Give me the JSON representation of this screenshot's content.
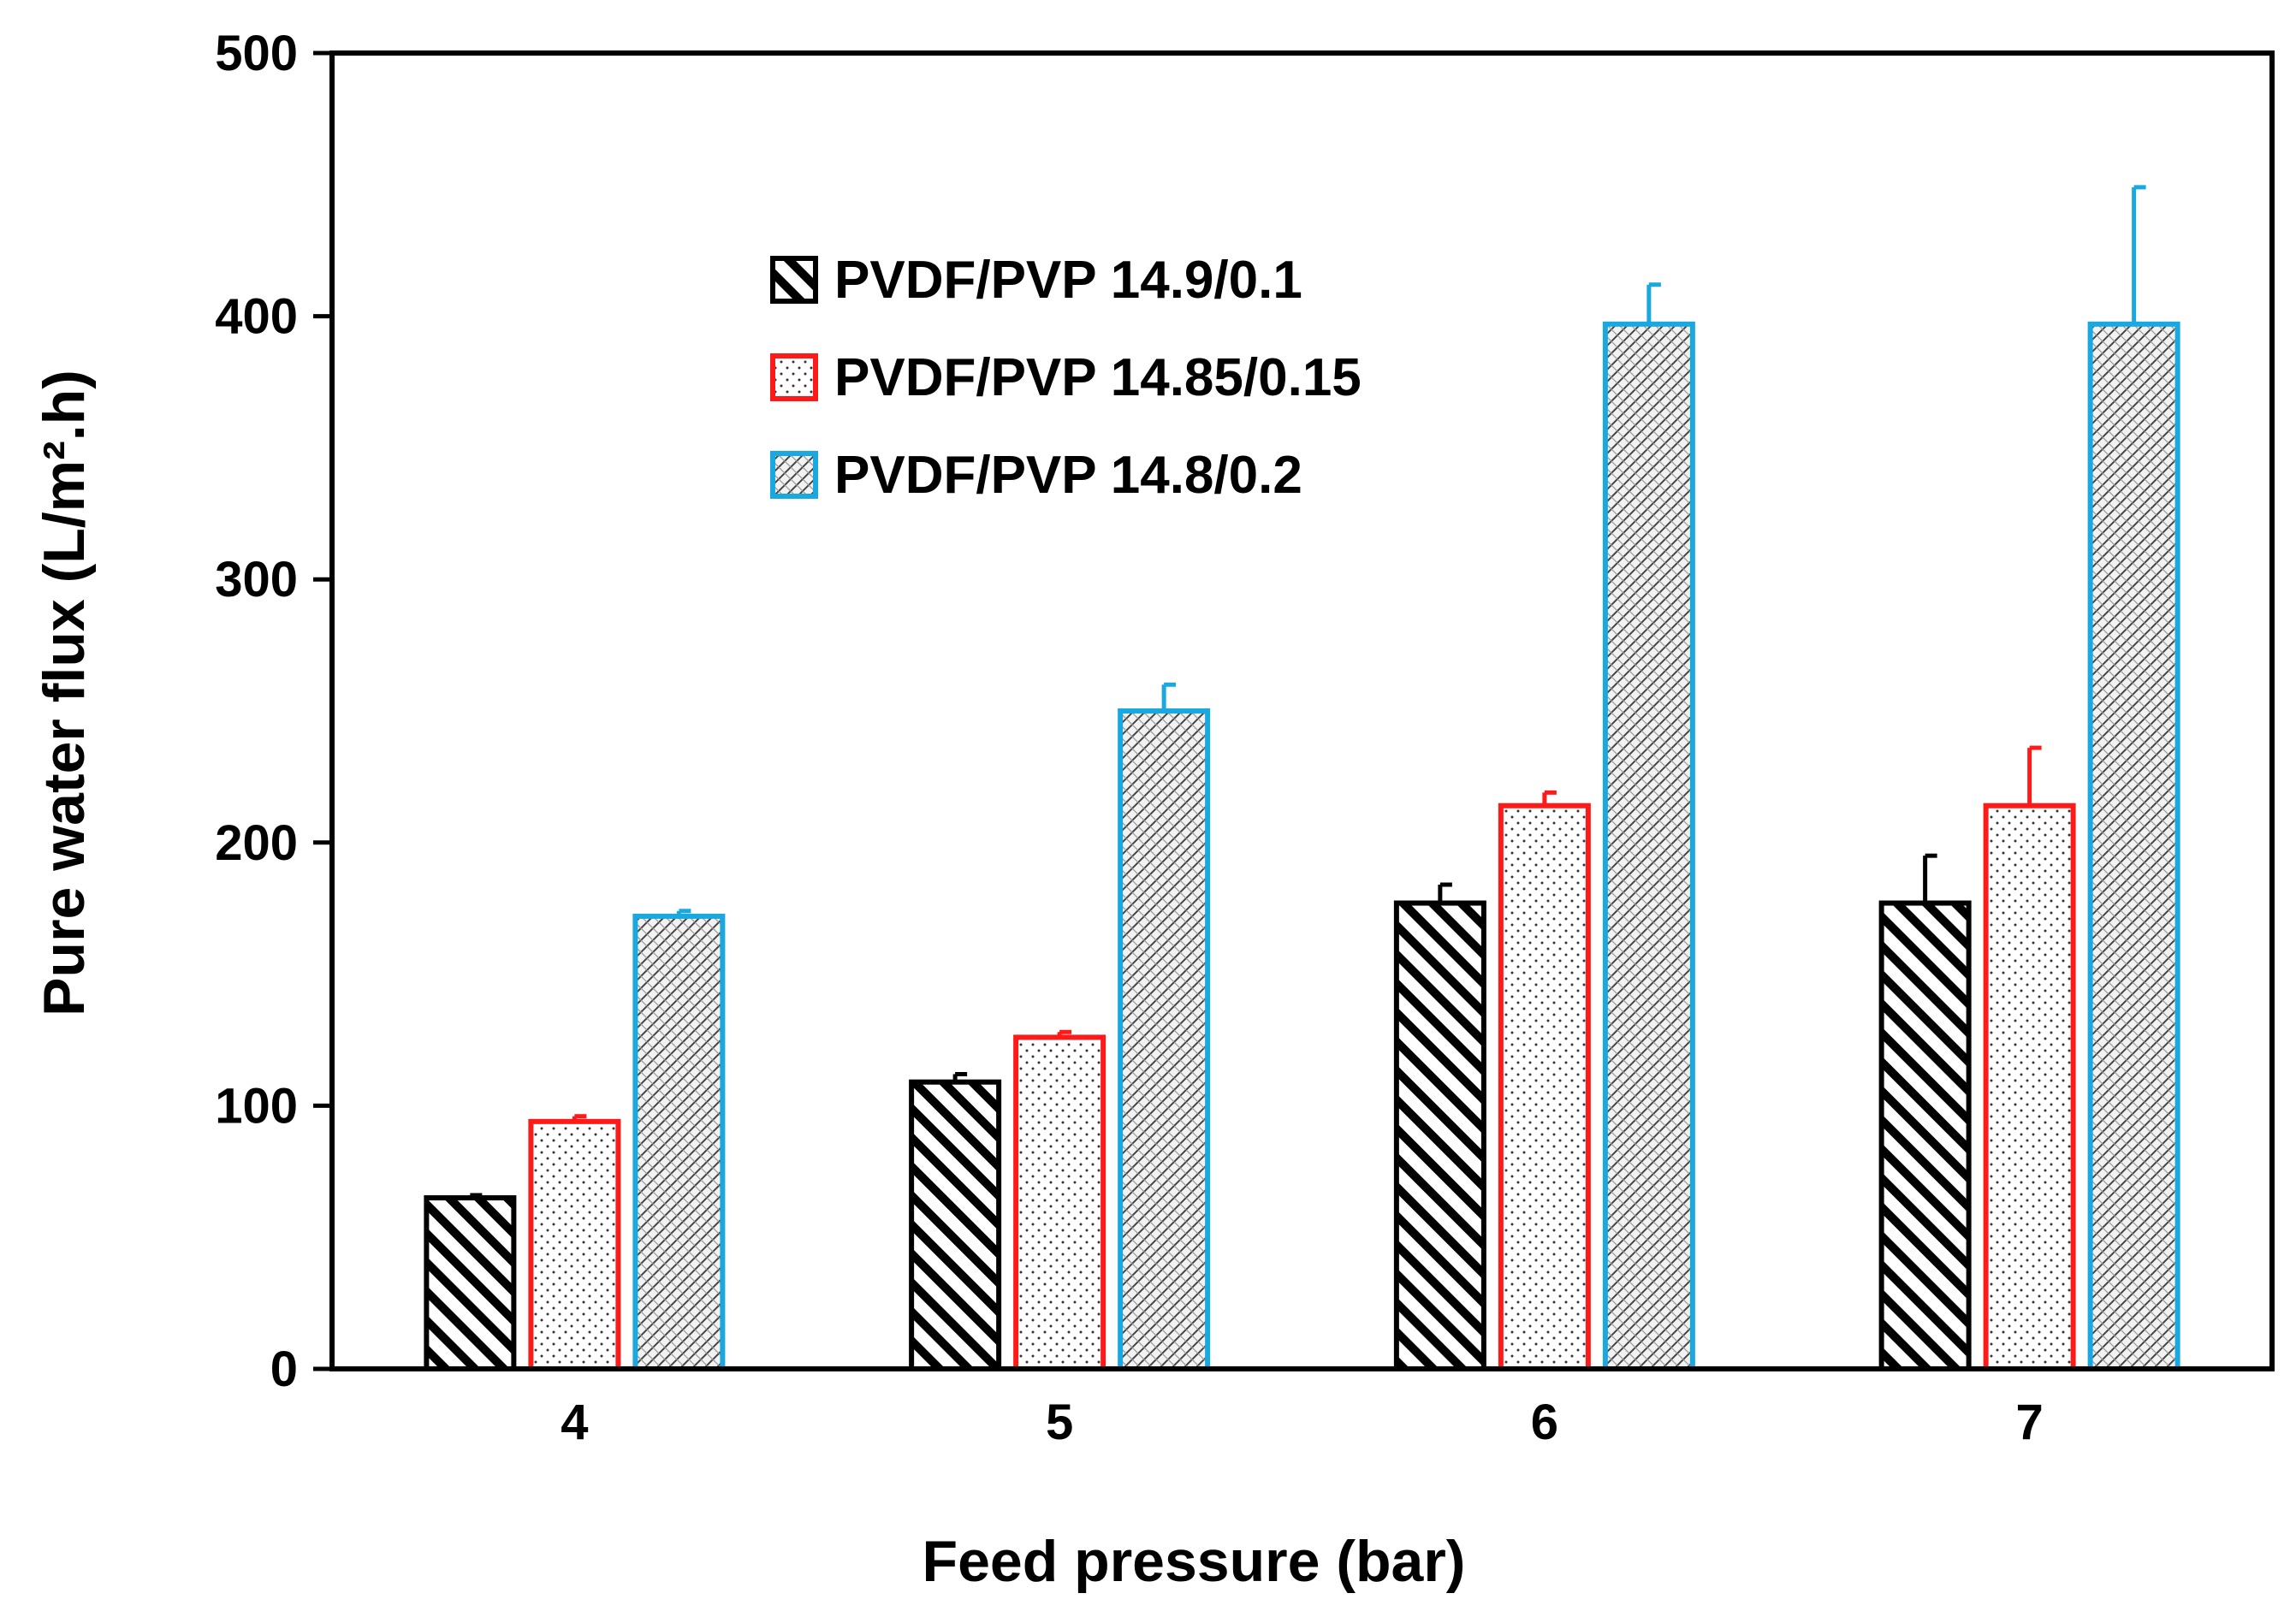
{
  "chart_data": {
    "type": "bar",
    "title": "",
    "xlabel": "Feed pressure (bar)",
    "ylabel": "Pure water flux (L/m².h)",
    "categories": [
      "4",
      "5",
      "6",
      "7"
    ],
    "ylim": [
      0,
      500
    ],
    "yticks": [
      0,
      100,
      200,
      300,
      400,
      500
    ],
    "grid": false,
    "legend_position": "upper-left-center",
    "series": [
      {
        "name": "PVDF/PVP 14.9/0.1",
        "values": [
          65,
          109,
          177,
          177
        ],
        "errors": [
          1,
          3,
          7,
          18
        ],
        "color": "#000000",
        "pattern": "dense-diagonal-hatch"
      },
      {
        "name": "PVDF/PVP 14.85/0.15",
        "values": [
          94,
          126,
          214,
          214
        ],
        "errors": [
          2,
          2,
          5,
          22
        ],
        "color": "#ff1a1a",
        "pattern": "dots"
      },
      {
        "name": "PVDF/PVP 14.8/0.2",
        "values": [
          172,
          250,
          397,
          397
        ],
        "errors": [
          2,
          10,
          15,
          52
        ],
        "color": "#1aa8e0",
        "pattern": "fine-crosshatch"
      }
    ]
  }
}
